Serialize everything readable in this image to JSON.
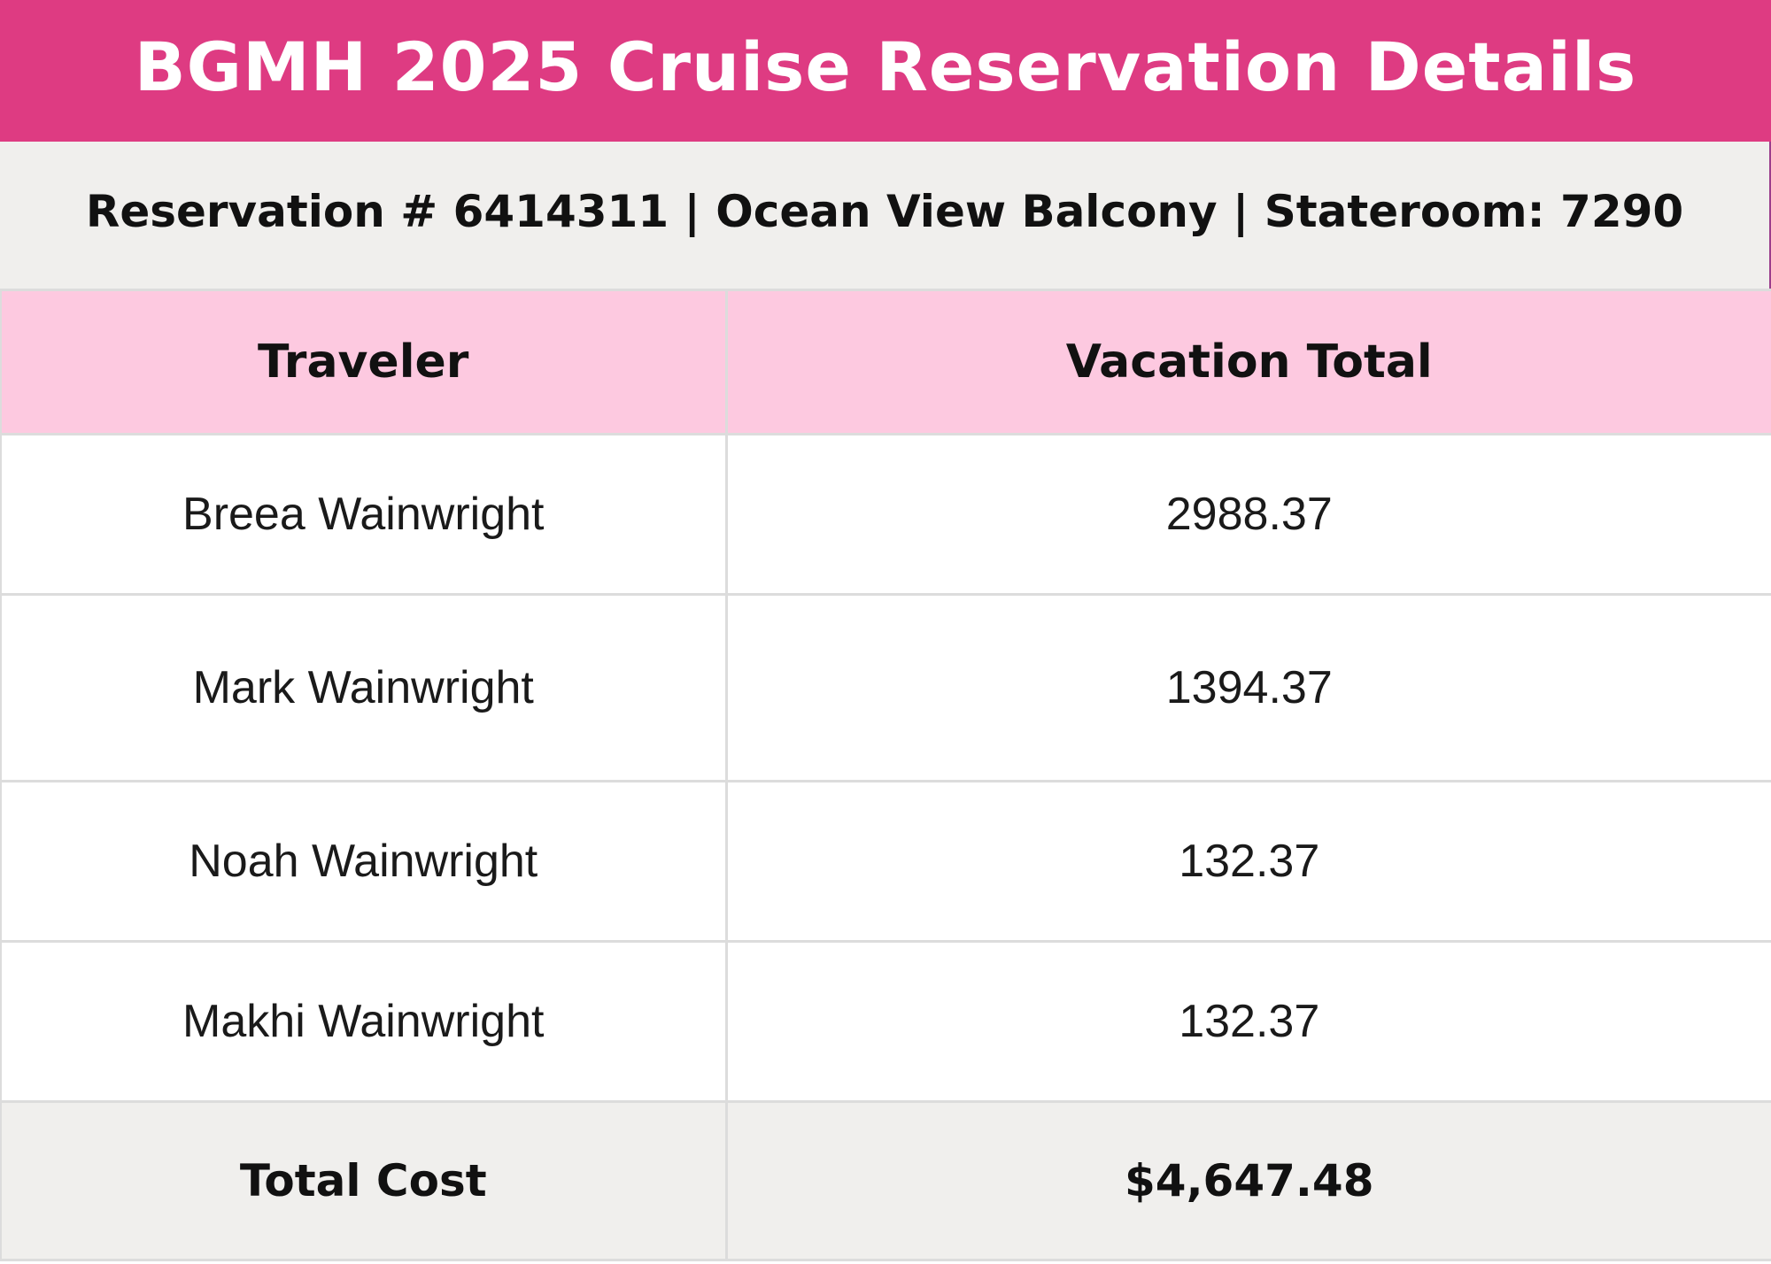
{
  "header": {
    "title": "BGMH 2025 Cruise Reservation Details"
  },
  "subheader": {
    "text": "Reservation # 6414311 | Ocean View Balcony | Stateroom: 7290"
  },
  "table": {
    "columns": [
      "Traveler",
      "Vacation Total"
    ],
    "rows": [
      {
        "traveler": "Breea Wainwright",
        "total": "2988.37"
      },
      {
        "traveler": "Mark Wainwright",
        "total": "1394.37"
      },
      {
        "traveler": "Noah Wainwright",
        "total": "132.37"
      },
      {
        "traveler": "Makhi Wainwright",
        "total": "132.37"
      }
    ],
    "footer": {
      "label": "Total Cost",
      "value": "$4,647.48"
    }
  },
  "colors": {
    "title_bar": "#de3b82",
    "header_row": "#fdc9e0",
    "band": "#f0efed"
  }
}
